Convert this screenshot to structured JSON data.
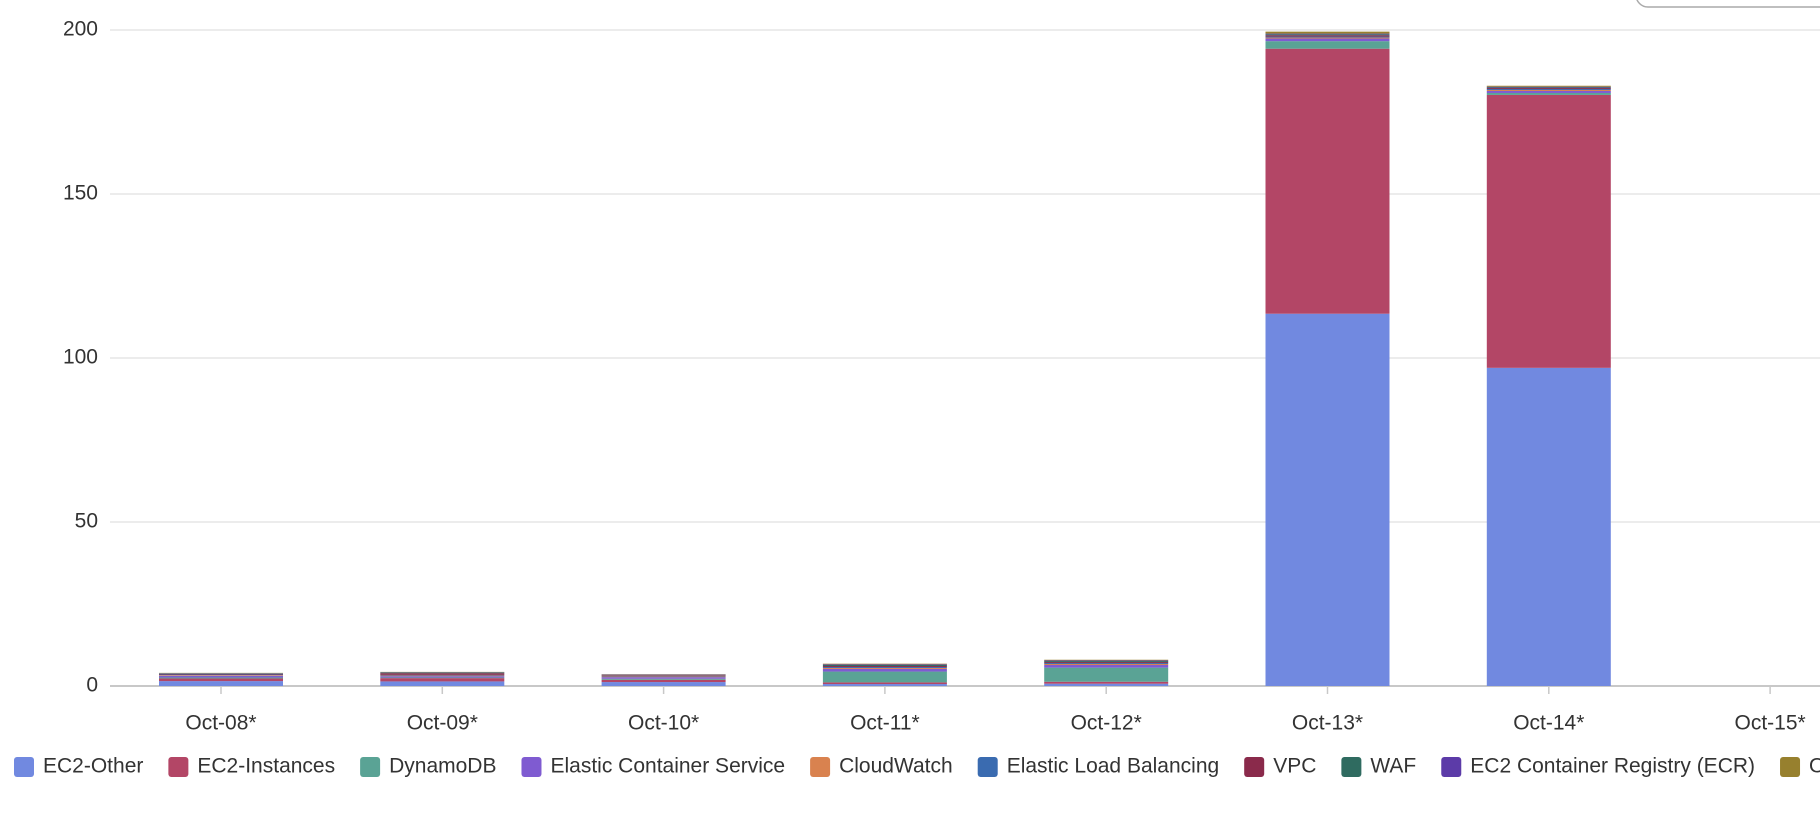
{
  "chart_data": {
    "type": "stacked_bar",
    "categories": [
      "Oct-08*",
      "Oct-09*",
      "Oct-10*",
      "Oct-11*",
      "Oct-12*",
      "Oct-13*",
      "Oct-14*",
      "Oct-15*"
    ],
    "series": [
      {
        "name": "EC2-Other",
        "color": "#7189e0",
        "values": [
          1.5,
          1.4,
          1.2,
          0.6,
          0.7,
          113.5,
          97,
          0
        ]
      },
      {
        "name": "EC2-Instances",
        "color": "#b34666",
        "values": [
          0.8,
          1.0,
          0.7,
          0.5,
          0.6,
          80.8,
          83.2,
          0
        ]
      },
      {
        "name": "DynamoDB",
        "color": "#5aa395",
        "values": [
          0.3,
          0.2,
          0.3,
          3.3,
          4.3,
          2.3,
          0.6,
          0
        ]
      },
      {
        "name": "Elastic Container Service",
        "color": "#7f5bd1",
        "values": [
          0.5,
          0.4,
          0.5,
          0.8,
          0.8,
          0.8,
          0.6,
          0
        ]
      },
      {
        "name": "CloudWatch",
        "color": "#d9824f",
        "values": [
          0.2,
          0.2,
          0.2,
          0.3,
          0.3,
          0.3,
          0.3,
          0
        ]
      },
      {
        "name": "Elastic Load Balancing",
        "color": "#3a6bb0",
        "values": [
          0.2,
          0.2,
          0.2,
          0.3,
          0.3,
          0.3,
          0.3,
          0
        ]
      },
      {
        "name": "VPC",
        "color": "#8a2a4b",
        "values": [
          0.2,
          0.5,
          0.2,
          0.3,
          0.3,
          0.4,
          0.3,
          0
        ]
      },
      {
        "name": "WAF",
        "color": "#2f6b60",
        "values": [
          0.1,
          0.2,
          0.1,
          0.3,
          0.3,
          0.3,
          0.2,
          0
        ]
      },
      {
        "name": "EC2 Container Registry (ECR)",
        "color": "#5c3ba8",
        "values": [
          0.1,
          0.1,
          0.1,
          0.2,
          0.2,
          0.2,
          0.2,
          0
        ]
      },
      {
        "name": "Others",
        "color": "#97802e",
        "values": [
          0.1,
          0.1,
          0.1,
          0.2,
          0.2,
          0.6,
          0.3,
          0
        ]
      }
    ],
    "ylim": [
      0,
      200
    ],
    "yticks": [
      0,
      50,
      100,
      150,
      200
    ],
    "grid": true,
    "legend": "bottom"
  }
}
